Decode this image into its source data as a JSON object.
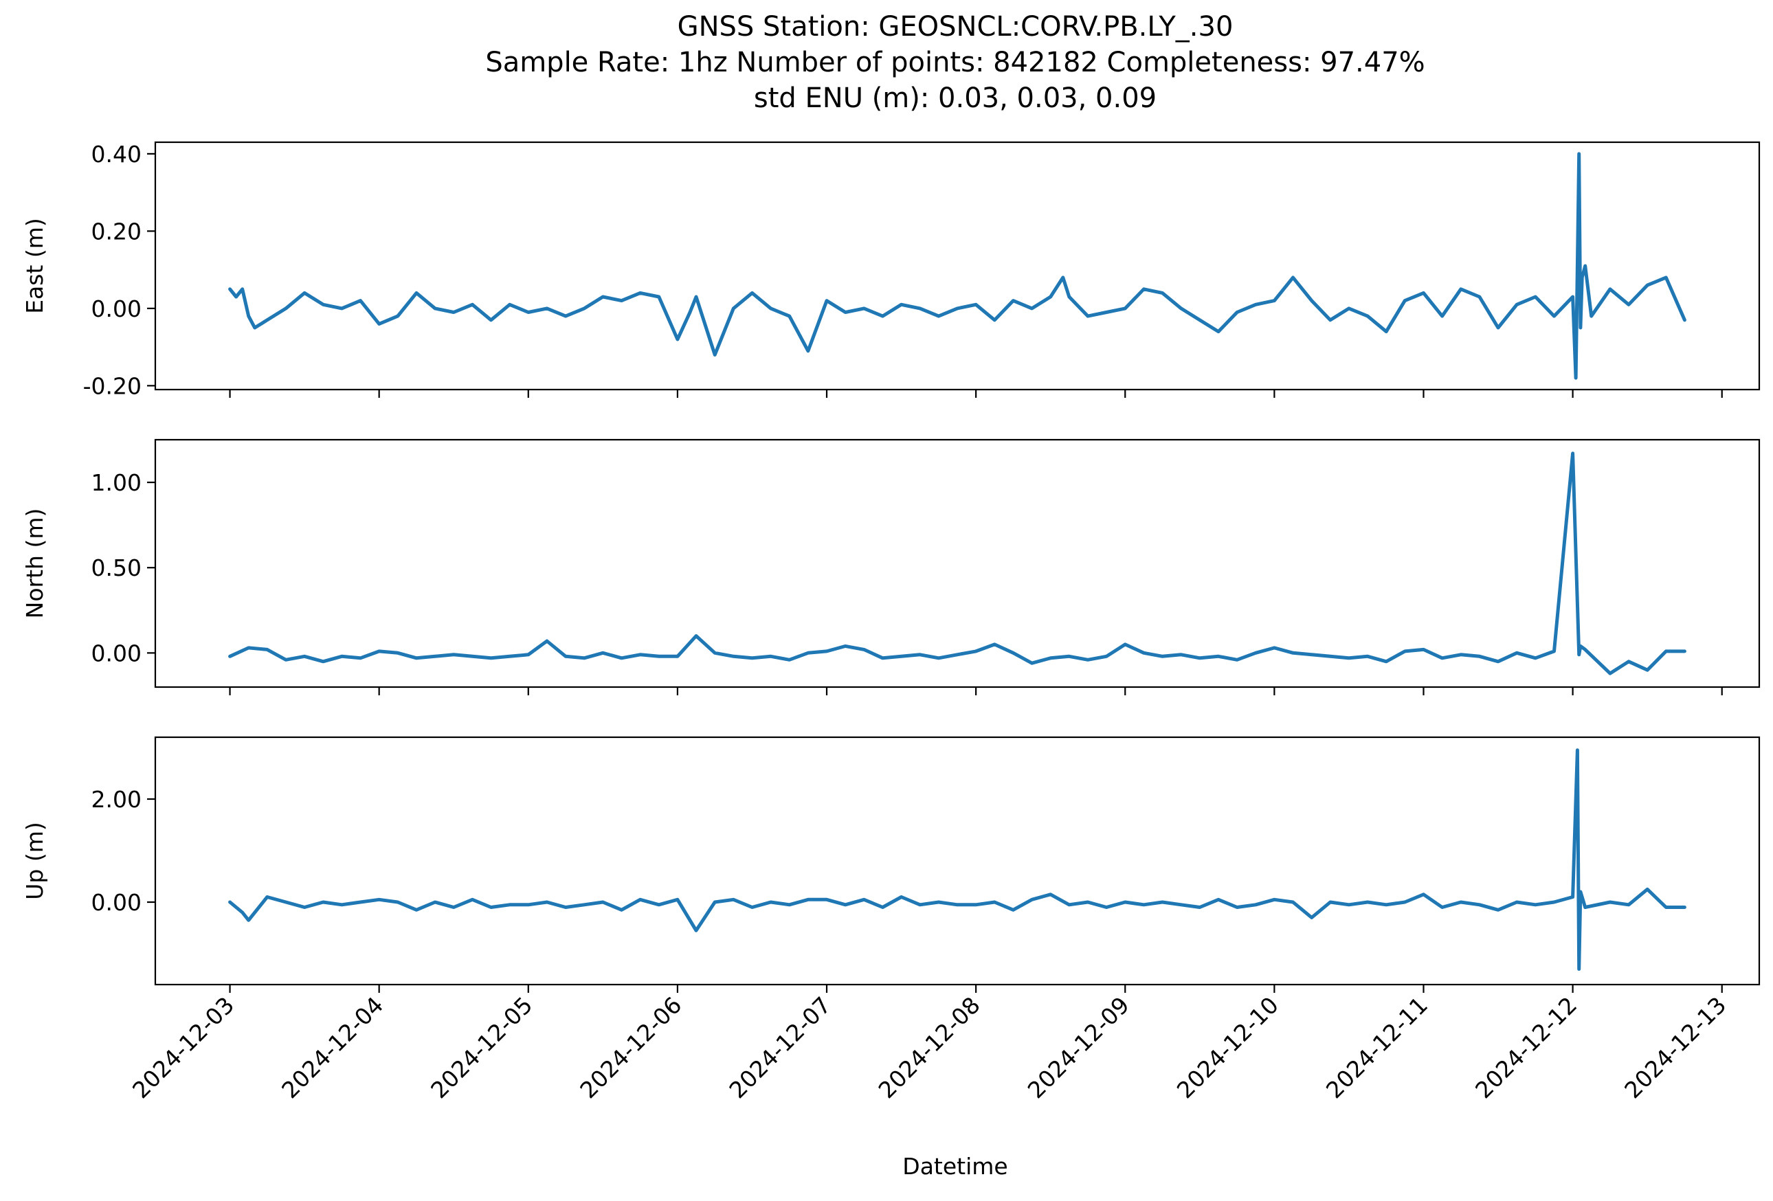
{
  "chart_data": {
    "type": "line",
    "title_lines": [
      "GNSS Station: GEOSNCL:CORV.PB.LY_.30",
      "Sample Rate: 1hz   Number of points: 842182    Completeness:  97.47%",
      "std ENU (m):  0.03, 0.03, 0.09"
    ],
    "xlabel": "Datetime",
    "x_ticks": [
      "2024-12-03",
      "2024-12-04",
      "2024-12-05",
      "2024-12-06",
      "2024-12-07",
      "2024-12-08",
      "2024-12-09",
      "2024-12-10",
      "2024-12-11",
      "2024-12-12",
      "2024-12-13"
    ],
    "xlim": [
      "2024-12-02T12:00",
      "2024-12-13T06:00"
    ],
    "grid": false,
    "color": "#1f77b4",
    "panels": [
      {
        "ylabel": "East (m)",
        "ylim": [
          -0.21,
          0.43
        ],
        "yticks": [
          {
            "v": 0.4,
            "label": "0.40"
          },
          {
            "v": 0.2,
            "label": "0.20"
          },
          {
            "v": 0.0,
            "label": "0.00"
          },
          {
            "v": -0.2,
            "label": "-0.20"
          }
        ],
        "series": {
          "x": [
            "2024-12-03T00:00",
            "2024-12-03T01:00",
            "2024-12-03T02:00",
            "2024-12-03T03:00",
            "2024-12-03T04:00",
            "2024-12-03T06:00",
            "2024-12-03T09:00",
            "2024-12-03T12:00",
            "2024-12-03T15:00",
            "2024-12-03T18:00",
            "2024-12-03T21:00",
            "2024-12-04T00:00",
            "2024-12-04T03:00",
            "2024-12-04T06:00",
            "2024-12-04T09:00",
            "2024-12-04T12:00",
            "2024-12-04T15:00",
            "2024-12-04T18:00",
            "2024-12-04T21:00",
            "2024-12-05T00:00",
            "2024-12-05T03:00",
            "2024-12-05T06:00",
            "2024-12-05T09:00",
            "2024-12-05T12:00",
            "2024-12-05T15:00",
            "2024-12-05T18:00",
            "2024-12-05T21:00",
            "2024-12-06T00:00",
            "2024-12-06T02:00",
            "2024-12-06T03:00",
            "2024-12-06T06:00",
            "2024-12-06T09:00",
            "2024-12-06T12:00",
            "2024-12-06T15:00",
            "2024-12-06T18:00",
            "2024-12-06T21:00",
            "2024-12-07T00:00",
            "2024-12-07T03:00",
            "2024-12-07T06:00",
            "2024-12-07T09:00",
            "2024-12-07T12:00",
            "2024-12-07T15:00",
            "2024-12-07T18:00",
            "2024-12-07T21:00",
            "2024-12-08T00:00",
            "2024-12-08T03:00",
            "2024-12-08T06:00",
            "2024-12-08T09:00",
            "2024-12-08T12:00",
            "2024-12-08T14:00",
            "2024-12-08T15:00",
            "2024-12-08T18:00",
            "2024-12-08T21:00",
            "2024-12-09T00:00",
            "2024-12-09T03:00",
            "2024-12-09T06:00",
            "2024-12-09T09:00",
            "2024-12-09T12:00",
            "2024-12-09T15:00",
            "2024-12-09T18:00",
            "2024-12-09T21:00",
            "2024-12-10T00:00",
            "2024-12-10T03:00",
            "2024-12-10T06:00",
            "2024-12-10T09:00",
            "2024-12-10T12:00",
            "2024-12-10T15:00",
            "2024-12-10T18:00",
            "2024-12-10T21:00",
            "2024-12-11T00:00",
            "2024-12-11T03:00",
            "2024-12-11T06:00",
            "2024-12-11T09:00",
            "2024-12-11T12:00",
            "2024-12-11T15:00",
            "2024-12-11T18:00",
            "2024-12-11T21:00",
            "2024-12-12T00:00",
            "2024-12-12T00:30",
            "2024-12-12T01:00",
            "2024-12-12T01:15",
            "2024-12-12T01:30",
            "2024-12-12T02:00",
            "2024-12-12T03:00",
            "2024-12-12T06:00",
            "2024-12-12T09:00",
            "2024-12-12T12:00",
            "2024-12-12T15:00",
            "2024-12-12T18:00"
          ],
          "y": [
            0.05,
            0.03,
            0.05,
            -0.02,
            -0.05,
            -0.03,
            0.0,
            0.04,
            0.01,
            0.0,
            0.02,
            -0.04,
            -0.02,
            0.04,
            0.0,
            -0.01,
            0.01,
            -0.03,
            0.01,
            -0.01,
            0.0,
            -0.02,
            0.0,
            0.03,
            0.02,
            0.04,
            0.03,
            -0.08,
            -0.01,
            0.03,
            -0.12,
            0.0,
            0.04,
            0.0,
            -0.02,
            -0.11,
            0.02,
            -0.01,
            0.0,
            -0.02,
            0.01,
            0.0,
            -0.02,
            0.0,
            0.01,
            -0.03,
            0.02,
            0.0,
            0.03,
            0.08,
            0.03,
            -0.02,
            -0.01,
            0.0,
            0.05,
            0.04,
            0.0,
            -0.03,
            -0.06,
            -0.01,
            0.01,
            0.02,
            0.08,
            0.02,
            -0.03,
            0.0,
            -0.02,
            -0.06,
            0.02,
            0.04,
            -0.02,
            0.05,
            0.03,
            -0.05,
            0.01,
            0.03,
            -0.02,
            0.03,
            -0.18,
            0.4,
            -0.05,
            0.08,
            0.11,
            -0.02,
            0.05,
            0.01,
            0.06,
            0.08,
            -0.03
          ]
        }
      },
      {
        "ylabel": "North (m)",
        "ylim": [
          -0.2,
          1.25
        ],
        "yticks": [
          {
            "v": 1.0,
            "label": "1.00"
          },
          {
            "v": 0.5,
            "label": "0.50"
          },
          {
            "v": 0.0,
            "label": "0.00"
          }
        ],
        "series": {
          "x": [
            "2024-12-03T00:00",
            "2024-12-03T03:00",
            "2024-12-03T06:00",
            "2024-12-03T09:00",
            "2024-12-03T12:00",
            "2024-12-03T15:00",
            "2024-12-03T18:00",
            "2024-12-03T21:00",
            "2024-12-04T00:00",
            "2024-12-04T03:00",
            "2024-12-04T06:00",
            "2024-12-04T09:00",
            "2024-12-04T12:00",
            "2024-12-04T15:00",
            "2024-12-04T18:00",
            "2024-12-04T21:00",
            "2024-12-05T00:00",
            "2024-12-05T03:00",
            "2024-12-05T06:00",
            "2024-12-05T09:00",
            "2024-12-05T12:00",
            "2024-12-05T15:00",
            "2024-12-05T18:00",
            "2024-12-05T21:00",
            "2024-12-06T00:00",
            "2024-12-06T03:00",
            "2024-12-06T06:00",
            "2024-12-06T09:00",
            "2024-12-06T12:00",
            "2024-12-06T15:00",
            "2024-12-06T18:00",
            "2024-12-06T21:00",
            "2024-12-07T00:00",
            "2024-12-07T03:00",
            "2024-12-07T06:00",
            "2024-12-07T09:00",
            "2024-12-07T12:00",
            "2024-12-07T15:00",
            "2024-12-07T18:00",
            "2024-12-07T21:00",
            "2024-12-08T00:00",
            "2024-12-08T03:00",
            "2024-12-08T06:00",
            "2024-12-08T09:00",
            "2024-12-08T12:00",
            "2024-12-08T15:00",
            "2024-12-08T18:00",
            "2024-12-08T21:00",
            "2024-12-09T00:00",
            "2024-12-09T03:00",
            "2024-12-09T06:00",
            "2024-12-09T09:00",
            "2024-12-09T12:00",
            "2024-12-09T15:00",
            "2024-12-09T18:00",
            "2024-12-09T21:00",
            "2024-12-10T00:00",
            "2024-12-10T03:00",
            "2024-12-10T06:00",
            "2024-12-10T09:00",
            "2024-12-10T12:00",
            "2024-12-10T15:00",
            "2024-12-10T18:00",
            "2024-12-10T21:00",
            "2024-12-11T00:00",
            "2024-12-11T03:00",
            "2024-12-11T06:00",
            "2024-12-11T09:00",
            "2024-12-11T12:00",
            "2024-12-11T15:00",
            "2024-12-11T18:00",
            "2024-12-11T21:00",
            "2024-12-12T00:00",
            "2024-12-12T01:00",
            "2024-12-12T01:15",
            "2024-12-12T02:00",
            "2024-12-12T06:00",
            "2024-12-12T09:00",
            "2024-12-12T12:00",
            "2024-12-12T15:00",
            "2024-12-12T18:00"
          ],
          "y": [
            -0.02,
            0.03,
            0.02,
            -0.04,
            -0.02,
            -0.05,
            -0.02,
            -0.03,
            0.01,
            0.0,
            -0.03,
            -0.02,
            -0.01,
            -0.02,
            -0.03,
            -0.02,
            -0.01,
            0.07,
            -0.02,
            -0.03,
            0.0,
            -0.03,
            -0.01,
            -0.02,
            -0.02,
            0.1,
            0.0,
            -0.02,
            -0.03,
            -0.02,
            -0.04,
            0.0,
            0.01,
            0.04,
            0.02,
            -0.03,
            -0.02,
            -0.01,
            -0.03,
            -0.01,
            0.01,
            0.05,
            0.0,
            -0.06,
            -0.03,
            -0.02,
            -0.04,
            -0.02,
            0.05,
            0.0,
            -0.02,
            -0.01,
            -0.03,
            -0.02,
            -0.04,
            0.0,
            0.03,
            0.0,
            -0.01,
            -0.02,
            -0.03,
            -0.02,
            -0.05,
            0.01,
            0.02,
            -0.03,
            -0.01,
            -0.02,
            -0.05,
            0.0,
            -0.03,
            0.01,
            1.17,
            -0.01,
            0.04,
            0.02,
            -0.12,
            -0.05,
            -0.1,
            0.01,
            0.01
          ]
        }
      },
      {
        "ylabel": "Up (m)",
        "ylim": [
          -1.6,
          3.2
        ],
        "yticks": [
          {
            "v": 2.0,
            "label": "2.00"
          },
          {
            "v": 0.0,
            "label": "0.00"
          }
        ],
        "series": {
          "x": [
            "2024-12-03T00:00",
            "2024-12-03T02:00",
            "2024-12-03T03:00",
            "2024-12-03T06:00",
            "2024-12-03T09:00",
            "2024-12-03T12:00",
            "2024-12-03T15:00",
            "2024-12-03T18:00",
            "2024-12-03T21:00",
            "2024-12-04T00:00",
            "2024-12-04T03:00",
            "2024-12-04T06:00",
            "2024-12-04T09:00",
            "2024-12-04T12:00",
            "2024-12-04T15:00",
            "2024-12-04T18:00",
            "2024-12-04T21:00",
            "2024-12-05T00:00",
            "2024-12-05T03:00",
            "2024-12-05T06:00",
            "2024-12-05T09:00",
            "2024-12-05T12:00",
            "2024-12-05T15:00",
            "2024-12-05T18:00",
            "2024-12-05T21:00",
            "2024-12-06T00:00",
            "2024-12-06T03:00",
            "2024-12-06T06:00",
            "2024-12-06T09:00",
            "2024-12-06T12:00",
            "2024-12-06T15:00",
            "2024-12-06T18:00",
            "2024-12-06T21:00",
            "2024-12-07T00:00",
            "2024-12-07T03:00",
            "2024-12-07T06:00",
            "2024-12-07T09:00",
            "2024-12-07T12:00",
            "2024-12-07T15:00",
            "2024-12-07T18:00",
            "2024-12-07T21:00",
            "2024-12-08T00:00",
            "2024-12-08T03:00",
            "2024-12-08T06:00",
            "2024-12-08T09:00",
            "2024-12-08T12:00",
            "2024-12-08T15:00",
            "2024-12-08T18:00",
            "2024-12-08T21:00",
            "2024-12-09T00:00",
            "2024-12-09T03:00",
            "2024-12-09T06:00",
            "2024-12-09T09:00",
            "2024-12-09T12:00",
            "2024-12-09T15:00",
            "2024-12-09T18:00",
            "2024-12-09T21:00",
            "2024-12-10T00:00",
            "2024-12-10T03:00",
            "2024-12-10T06:00",
            "2024-12-10T09:00",
            "2024-12-10T12:00",
            "2024-12-10T15:00",
            "2024-12-10T18:00",
            "2024-12-10T21:00",
            "2024-12-11T00:00",
            "2024-12-11T03:00",
            "2024-12-11T06:00",
            "2024-12-11T09:00",
            "2024-12-11T12:00",
            "2024-12-11T15:00",
            "2024-12-11T18:00",
            "2024-12-11T21:00",
            "2024-12-12T00:00",
            "2024-12-12T00:45",
            "2024-12-12T01:00",
            "2024-12-12T01:15",
            "2024-12-12T02:00",
            "2024-12-12T06:00",
            "2024-12-12T09:00",
            "2024-12-12T12:00",
            "2024-12-12T15:00",
            "2024-12-12T18:00"
          ],
          "y": [
            0.0,
            -0.2,
            -0.35,
            0.1,
            0.0,
            -0.1,
            0.0,
            -0.05,
            0.0,
            0.05,
            0.0,
            -0.15,
            0.0,
            -0.1,
            0.05,
            -0.1,
            -0.05,
            -0.05,
            0.0,
            -0.1,
            -0.05,
            0.0,
            -0.15,
            0.05,
            -0.05,
            0.05,
            -0.55,
            0.0,
            0.05,
            -0.1,
            0.0,
            -0.05,
            0.05,
            0.05,
            -0.05,
            0.05,
            -0.1,
            0.1,
            -0.05,
            0.0,
            -0.05,
            -0.05,
            0.0,
            -0.15,
            0.05,
            0.15,
            -0.05,
            0.0,
            -0.1,
            0.0,
            -0.05,
            0.0,
            -0.05,
            -0.1,
            0.05,
            -0.1,
            -0.05,
            0.05,
            0.0,
            -0.3,
            0.0,
            -0.05,
            0.0,
            -0.05,
            0.0,
            0.15,
            -0.1,
            0.0,
            -0.05,
            -0.15,
            0.0,
            -0.05,
            0.0,
            0.1,
            2.95,
            -1.3,
            0.2,
            -0.1,
            0.0,
            -0.05,
            0.25,
            -0.1,
            -0.1
          ]
        }
      }
    ]
  }
}
